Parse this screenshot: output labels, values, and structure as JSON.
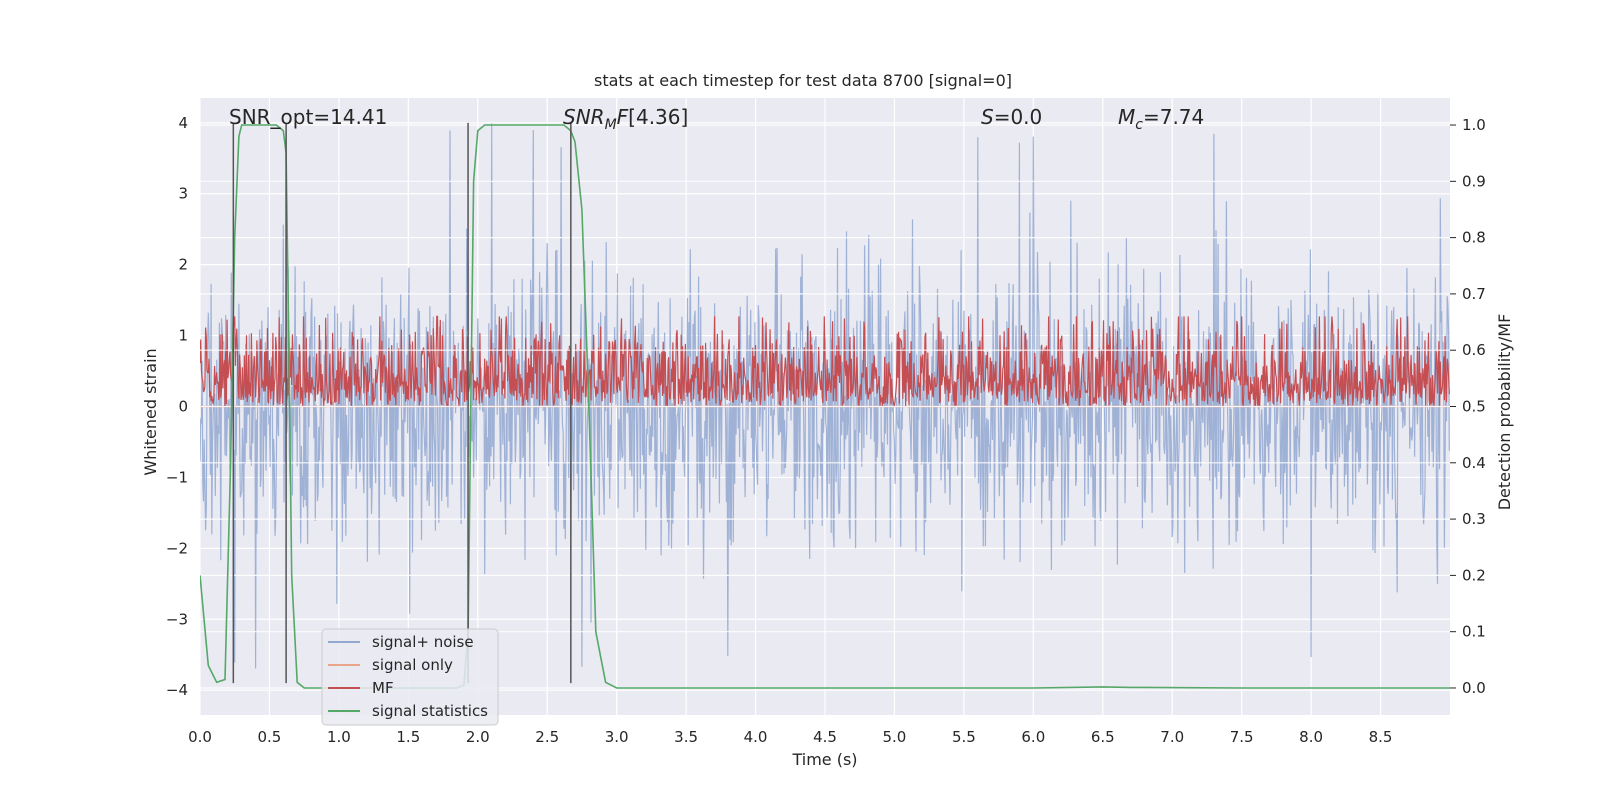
{
  "chart_data": {
    "type": "line",
    "title": "stats at each timestep for test data 8700 [signal=0]",
    "xlabel": "Time (s)",
    "ylabel": "Whitened strain",
    "y2label": "Detection probability/MF",
    "xlim": [
      0,
      9
    ],
    "ylim": [
      -4.35,
      4.35
    ],
    "y2lim": [
      -0.048,
      1.048
    ],
    "x_ticks": [
      0.0,
      0.5,
      1.0,
      1.5,
      2.0,
      2.5,
      3.0,
      3.5,
      4.0,
      4.5,
      5.0,
      5.5,
      6.0,
      6.5,
      7.0,
      7.5,
      8.0,
      8.5
    ],
    "x_tick_labels": [
      "0.0",
      "0.5",
      "1.0",
      "1.5",
      "2.0",
      "2.5",
      "3.0",
      "3.5",
      "4.0",
      "4.5",
      "5.0",
      "5.5",
      "6.0",
      "6.5",
      "7.0",
      "7.5",
      "8.0",
      "8.5"
    ],
    "y_ticks": [
      4,
      3,
      2,
      1,
      0,
      -1,
      -2,
      -3,
      -4
    ],
    "y_tick_labels": [
      "4",
      "3",
      "2",
      "1",
      "0",
      "−1",
      "−2",
      "−3",
      "−4"
    ],
    "y2_ticks": [
      1.0,
      0.9,
      0.8,
      0.7,
      0.6,
      0.5,
      0.4,
      0.3,
      0.2,
      0.1,
      0.0
    ],
    "y2_tick_labels": [
      "1.0",
      "0.9",
      "0.8",
      "0.7",
      "0.6",
      "0.5",
      "0.4",
      "0.3",
      "0.2",
      "0.1",
      "0.0"
    ],
    "grid": true,
    "legend_position": "lower-left",
    "annotations": {
      "snr_opt": "SNR_opt=14.41",
      "snr_mf": "[4.36]",
      "s_value": "=0.0",
      "mc_value": "=7.74"
    },
    "series": [
      {
        "name": "signal+ noise",
        "color": "#92a8d1",
        "axis": "left",
        "noise": {
          "std": 0.95,
          "min": -3.9,
          "max": 4.0,
          "x_step": 0.005
        },
        "peaks_x": [
          0.25,
          0.4,
          0.62,
          1.8,
          2.1,
          2.4,
          2.6,
          2.75,
          3.8,
          5.6,
          5.9,
          6.0,
          7.3,
          8.0
        ]
      },
      {
        "name": "signal only",
        "color": "#e8a58a",
        "axis": "left",
        "x": [
          0,
          9
        ],
        "y": [
          0,
          0
        ]
      },
      {
        "name": "MF",
        "color": "#c44e52",
        "axis": "right",
        "baseline": 0.5,
        "noise": {
          "min": 0.5,
          "typical_max": 0.62,
          "max": 0.66,
          "x_step": 0.005
        }
      },
      {
        "name": "signal statistics",
        "color": "#55a868",
        "axis": "right",
        "x": [
          0.0,
          0.06,
          0.12,
          0.18,
          0.22,
          0.25,
          0.28,
          0.3,
          0.32,
          0.4,
          0.55,
          0.6,
          0.62,
          0.64,
          0.66,
          0.7,
          0.75,
          0.8,
          1.0,
          1.5,
          1.85,
          1.9,
          1.93,
          1.95,
          1.97,
          2.0,
          2.05,
          2.2,
          2.5,
          2.62,
          2.67,
          2.7,
          2.75,
          2.8,
          2.85,
          2.92,
          3.0,
          4.0,
          5.0,
          6.0,
          6.5,
          6.7,
          7.5,
          8.5,
          9.0
        ],
        "y": [
          0.2,
          0.04,
          0.01,
          0.015,
          0.4,
          0.8,
          0.98,
          1.0,
          1.0,
          1.0,
          1.0,
          0.99,
          0.95,
          0.6,
          0.2,
          0.01,
          0.0,
          0.0,
          0.0,
          0.0,
          0.0,
          0.005,
          0.1,
          0.5,
          0.9,
          0.99,
          1.0,
          1.0,
          1.0,
          1.0,
          0.99,
          0.97,
          0.85,
          0.5,
          0.1,
          0.01,
          0.0,
          0.0,
          0.0,
          0.0,
          0.002,
          0.001,
          0.0,
          0.0,
          0.0
        ]
      }
    ],
    "vertical_markers": {
      "color": "#555555",
      "x": [
        0.24,
        0.62,
        1.93,
        2.67
      ],
      "y_range": [
        -3.9,
        4.0
      ]
    }
  }
}
